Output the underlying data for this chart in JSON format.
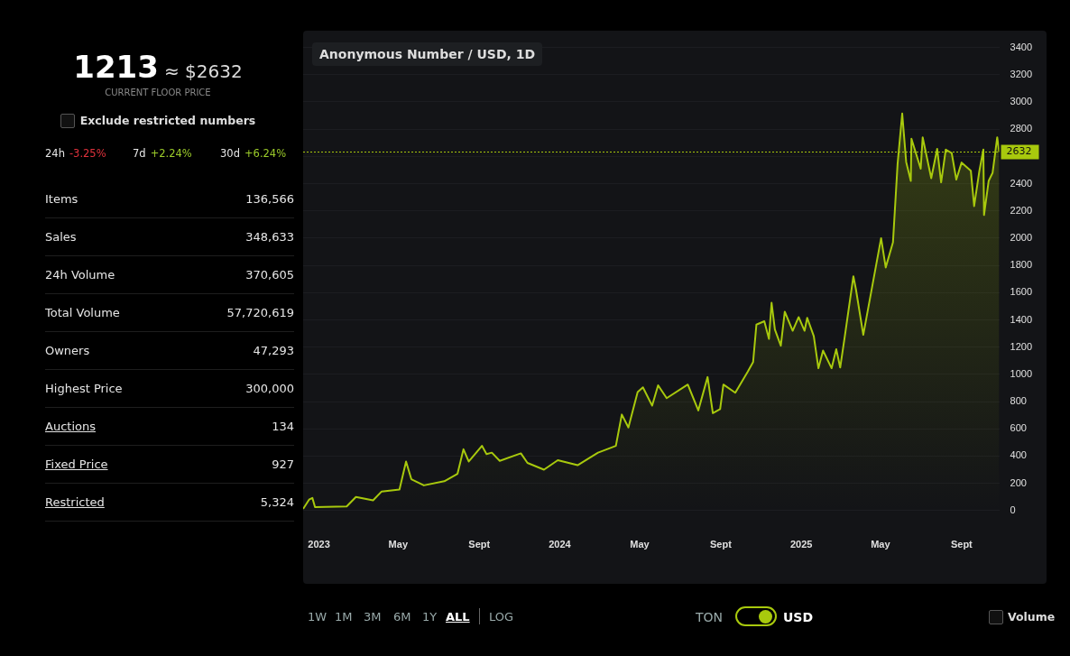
{
  "chart_data": [
    {
      "type": "other",
      "annotations": [
        "1213",
        "≈ $2632",
        "CURRENT FLOOR PRICE",
        "Exclude restricted numbers",
        "24h",
        "-3.25%",
        "7d",
        "+2.24%",
        "30d",
        "+6.24%",
        "Items",
        "136,566",
        "Sales",
        "348,633",
        "24h Volume",
        "370,605",
        "Total Volume",
        "57,720,619",
        "Owners",
        "47,293",
        "Highest Price",
        "300,000",
        "Auctions",
        "134",
        "Fixed Price",
        "927",
        "Restricted",
        "5,324"
      ]
    },
    {
      "type": "area",
      "title": "Anonymous Number / USD, 1D",
      "grid": "y",
      "legend": false,
      "xlim": [
        "2022-12-08",
        "2025-10-28"
      ],
      "xticks": [
        {
          "value": "2023-01-01",
          "label": "2023"
        },
        {
          "value": "2023-05-01",
          "label": "May"
        },
        {
          "value": "2023-09-01",
          "label": "Sept"
        },
        {
          "value": "2024-01-01",
          "label": "2024"
        },
        {
          "value": "2024-05-01",
          "label": "May"
        },
        {
          "value": "2024-09-01",
          "label": "Sept"
        },
        {
          "value": "2025-01-01",
          "label": "2025"
        },
        {
          "value": "2025-05-01",
          "label": "May"
        },
        {
          "value": "2025-09-01",
          "label": "Sept"
        }
      ],
      "ylim": [
        0,
        3400
      ],
      "yticks": [
        0,
        200,
        400,
        600,
        800,
        1000,
        1200,
        1400,
        1600,
        1800,
        2000,
        2200,
        2400,
        {
          "value": 2600,
          "label": null
        },
        2800,
        3000,
        3200,
        3400
      ],
      "ref_lines": [
        {
          "axis": "y",
          "value": 2632,
          "label": "2632",
          "color": "#a8c90d",
          "line_style": "dotted"
        }
      ],
      "annotations": [
        "1W",
        "1M",
        "3M",
        "6M",
        "1Y",
        "ALL",
        "LOG",
        "TON",
        "USD",
        "Volume"
      ],
      "series": [
        {
          "color": "#a8c90d",
          "x": [
            "2022-12-08",
            "2022-12-17",
            "2022-12-22",
            "2022-12-26",
            "2023-02-12",
            "2023-02-26",
            "2023-03-24",
            "2023-04-06",
            "2023-05-03",
            "2023-05-13",
            "2023-05-21",
            "2023-06-09",
            "2023-07-10",
            "2023-07-30",
            "2023-08-08",
            "2023-08-16",
            "2023-09-05",
            "2023-09-12",
            "2023-09-20",
            "2023-10-02",
            "2023-11-03",
            "2023-11-13",
            "2023-12-08",
            "2023-12-29",
            "2024-01-28",
            "2024-02-28",
            "2024-03-26",
            "2024-04-04",
            "2024-04-14",
            "2024-04-28",
            "2024-05-06",
            "2024-05-20",
            "2024-05-29",
            "2024-06-11",
            "2024-07-13",
            "2024-07-29",
            "2024-08-12",
            "2024-08-20",
            "2024-08-31",
            "2024-09-05",
            "2024-09-23",
            "2024-10-12",
            "2024-10-20",
            "2024-10-25",
            "2024-11-06",
            "2024-11-13",
            "2024-11-17",
            "2024-11-22",
            "2024-12-01",
            "2024-12-07",
            "2024-12-19",
            "2024-12-28",
            "2025-01-06",
            "2025-01-10",
            "2025-01-20",
            "2025-01-27",
            "2025-02-03",
            "2025-02-16",
            "2025-02-23",
            "2025-03-01",
            "2025-03-08",
            "2025-03-21",
            "2025-03-25",
            "2025-04-05",
            "2025-05-02",
            "2025-05-09",
            "2025-05-20",
            "2025-05-27",
            "2025-06-03",
            "2025-06-09",
            "2025-06-16",
            "2025-06-17",
            "2025-07-01",
            "2025-07-04",
            "2025-07-17",
            "2025-07-26",
            "2025-08-01",
            "2025-08-08",
            "2025-08-17",
            "2025-08-24",
            "2025-09-01",
            "2025-09-15",
            "2025-09-20",
            "2025-09-28",
            "2025-10-04",
            "2025-10-05",
            "2025-10-12",
            "2025-10-18",
            "2025-10-25",
            "2025-10-28"
          ],
          "values": [
            12,
            80,
            93,
            25,
            30,
            100,
            75,
            140,
            155,
            360,
            230,
            185,
            215,
            270,
            450,
            360,
            475,
            415,
            425,
            365,
            420,
            350,
            300,
            370,
            333,
            425,
            475,
            705,
            610,
            870,
            905,
            770,
            920,
            825,
            925,
            735,
            980,
            715,
            745,
            925,
            865,
            1020,
            1090,
            1365,
            1390,
            1260,
            1525,
            1330,
            1210,
            1460,
            1320,
            1420,
            1320,
            1415,
            1280,
            1045,
            1175,
            1045,
            1185,
            1050,
            1280,
            1720,
            1620,
            1290,
            2000,
            1785,
            1970,
            2545,
            2915,
            2560,
            2420,
            2730,
            2510,
            2740,
            2440,
            2655,
            2410,
            2650,
            2625,
            2430,
            2555,
            2495,
            2235,
            2495,
            2650,
            2170,
            2420,
            2480,
            2740,
            2632
          ]
        }
      ]
    }
  ]
}
